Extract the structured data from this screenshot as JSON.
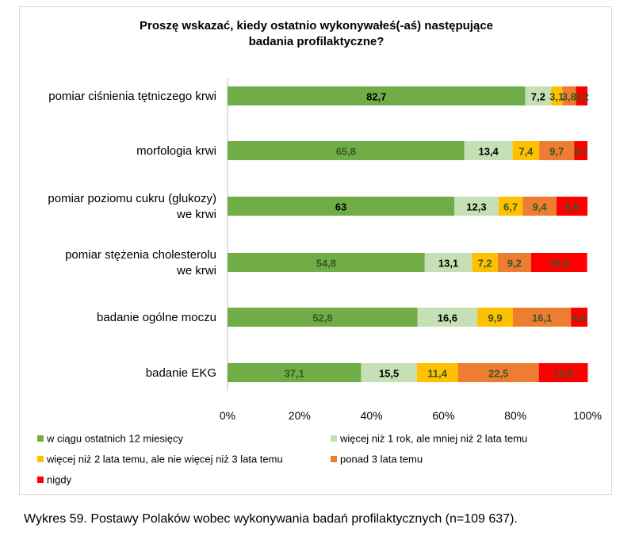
{
  "chart_data": {
    "type": "bar",
    "orientation": "horizontal",
    "stacked": "percent",
    "title_lines": [
      "Proszę wskazać, kiedy ostatnio wykonywałeś(-aś) następujące",
      "badania profilaktyczne?"
    ],
    "categories": [
      [
        "pomiar ciśnienia tętniczego krwi"
      ],
      [
        "morfologia krwi"
      ],
      [
        "pomiar poziomu cukru (glukozy)",
        "we krwi"
      ],
      [
        "pomiar stężenia cholesterolu",
        "we krwi"
      ],
      [
        "badanie ogólne moczu"
      ],
      [
        "badanie EKG"
      ]
    ],
    "series": [
      {
        "name": "w ciągu ostatnich 12 miesięcy",
        "color": "#70ad47",
        "values": [
          82.7,
          65.8,
          63,
          54.8,
          52.8,
          37.1
        ]
      },
      {
        "name": "więcej niż 1 rok, ale mniej niż 2 lata temu",
        "color": "#c5e0b4",
        "values": [
          7.2,
          13.4,
          12.3,
          13.1,
          16.6,
          15.5
        ]
      },
      {
        "name": "więcej niż 2 lata temu, ale nie więcej niż 3 lata temu",
        "color": "#ffc000",
        "values": [
          3.1,
          7.4,
          6.7,
          7.2,
          9.9,
          11.4
        ]
      },
      {
        "name": "ponad 3 lata temu",
        "color": "#ed7d31",
        "values": [
          3.8,
          9.7,
          9.4,
          9.2,
          16.1,
          22.5
        ]
      },
      {
        "name": "nigdy",
        "color": "#ff0000",
        "values": [
          3.2,
          3.7,
          8.6,
          15.6,
          4.6,
          13.6
        ]
      }
    ],
    "data_labels": [
      [
        "82,7",
        "65,8",
        "63",
        "54,8",
        "52,8",
        "37,1"
      ],
      [
        "7,2",
        "13,4",
        "12,3",
        "13,1",
        "16,6",
        "15,5"
      ],
      [
        "3,1",
        "7,4",
        "6,7",
        "7,2",
        "9,9",
        "11,4"
      ],
      [
        "3,8",
        "9,7",
        "9,4",
        "9,2",
        "16,1",
        "22,5"
      ],
      [
        "3,2",
        "3,7",
        "8,6",
        "15,6",
        "4,6",
        "13,6"
      ]
    ],
    "label_colors": [
      [
        "#000000",
        "#375623",
        "#000000",
        "#375623",
        "#375623",
        "#375623"
      ],
      [
        "#000000",
        "#000000",
        "#000000",
        "#000000",
        "#000000",
        "#000000"
      ],
      [
        "#375623",
        "#375623",
        "#375623",
        "#375623",
        "#375623",
        "#375623"
      ],
      [
        "#375623",
        "#375623",
        "#375623",
        "#375623",
        "#375623",
        "#375623"
      ],
      [
        "#375623",
        "#375623",
        "#375623",
        "#375623",
        "#375623",
        "#375623"
      ]
    ],
    "x_ticks": [
      "0%",
      "20%",
      "40%",
      "60%",
      "80%",
      "100%"
    ],
    "xlim": [
      0,
      100
    ],
    "legend": "bottom"
  },
  "caption": "Wykres 59. Postawy Polaków wobec wykonywania badań profilaktycznych (n=109 637)."
}
